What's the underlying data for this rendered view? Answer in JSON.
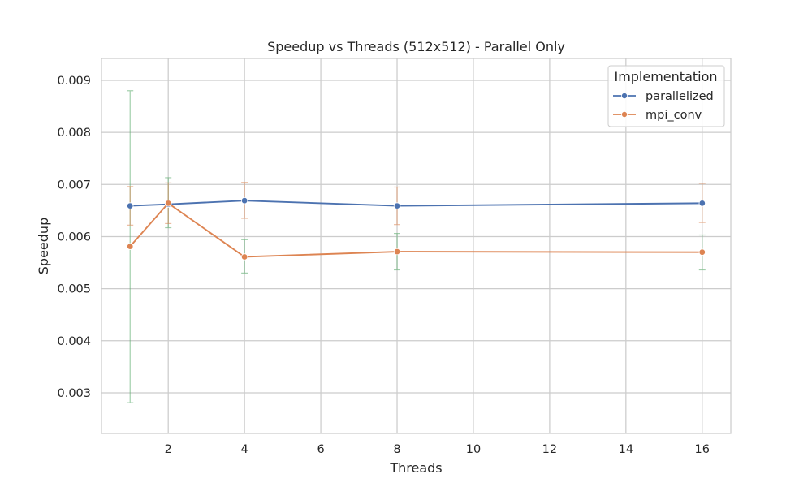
{
  "chart_data": {
    "type": "line",
    "title": "Speedup vs Threads (512x512) - Parallel Only",
    "xlabel": "Threads",
    "ylabel": "Speedup",
    "xlim": [
      0.25,
      16.75
    ],
    "ylim": [
      0.00222,
      0.00942
    ],
    "xticks": [
      2,
      4,
      6,
      8,
      10,
      12,
      14,
      16
    ],
    "yticks": [
      0.003,
      0.004,
      0.005,
      0.006,
      0.007,
      0.008,
      0.009
    ],
    "ytick_labels": [
      "0.003",
      "0.004",
      "0.005",
      "0.006",
      "0.007",
      "0.008",
      "0.009"
    ],
    "grid": true,
    "legend": {
      "title": "Implementation",
      "placement": "top-right"
    },
    "series": [
      {
        "name": "parallelized",
        "color": "#4c72b0",
        "x": [
          1,
          2,
          4,
          8,
          16
        ],
        "y": [
          0.00659,
          0.00662,
          0.00669,
          0.00659,
          0.00664
        ],
        "err_low": [
          0.00281,
          0.00617,
          0.0053,
          0.00536,
          0.00536
        ],
        "err_high": [
          0.0088,
          0.00713,
          0.00594,
          0.00606,
          0.00603
        ],
        "err_color": "#55a868"
      },
      {
        "name": "mpi_conv",
        "color": "#dd8452",
        "x": [
          1,
          2,
          4,
          8,
          16
        ],
        "y": [
          0.00581,
          0.00664,
          0.00561,
          0.00571,
          0.0057
        ],
        "err_low": [
          0.00622,
          0.00625,
          0.00635,
          0.00623,
          0.00627
        ],
        "err_high": [
          0.00696,
          0.00703,
          0.00704,
          0.00695,
          0.00702
        ],
        "err_color": "#dd8452"
      }
    ]
  }
}
